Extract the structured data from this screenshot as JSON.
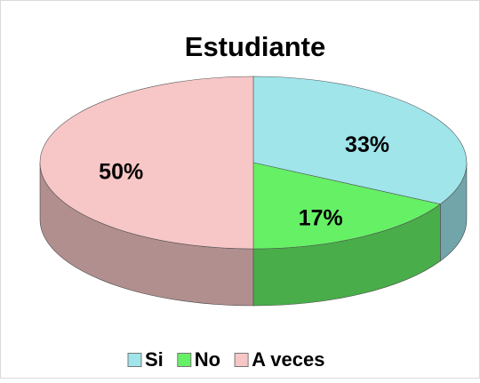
{
  "chart_data": {
    "type": "pie",
    "title": "Estudiante",
    "categories": [
      "Si",
      "No",
      "A veces"
    ],
    "values": [
      33,
      17,
      50
    ],
    "value_labels": [
      "33%",
      "17%",
      "50%"
    ],
    "colors": [
      "#9fe5ea",
      "#66f066",
      "#f7c6c6"
    ],
    "legend": "bottom"
  }
}
